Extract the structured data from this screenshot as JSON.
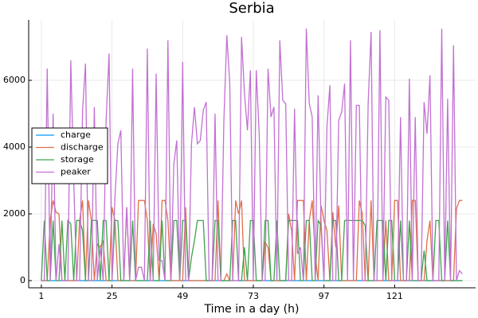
{
  "chart_data": {
    "type": "line",
    "title": "Serbia",
    "x_label": "Time in a day (h)",
    "x": [
      1,
      2,
      3,
      4,
      5,
      6,
      7,
      8,
      9,
      10,
      11,
      12,
      13,
      14,
      15,
      16,
      17,
      18,
      19,
      20,
      21,
      22,
      23,
      24,
      25,
      26,
      27,
      28,
      29,
      30,
      31,
      32,
      33,
      34,
      35,
      36,
      37,
      38,
      39,
      40,
      41,
      42,
      43,
      44,
      45,
      46,
      47,
      48,
      49,
      50,
      51,
      52,
      53,
      54,
      55,
      56,
      57,
      58,
      59,
      60,
      61,
      62,
      63,
      64,
      65,
      66,
      67,
      68,
      69,
      70,
      71,
      72,
      73,
      74,
      75,
      76,
      77,
      78,
      79,
      80,
      81,
      82,
      83,
      84,
      85,
      86,
      87,
      88,
      89,
      90,
      91,
      92,
      93,
      94,
      95,
      96,
      97,
      98,
      99,
      100,
      101,
      102,
      103,
      104,
      105,
      106,
      107,
      108,
      109,
      110,
      111,
      112,
      113,
      114,
      115,
      116,
      117,
      118,
      119,
      120,
      121,
      122,
      123,
      124,
      125,
      126,
      127,
      128,
      129,
      130,
      131,
      132,
      133,
      134,
      135,
      136,
      137,
      138,
      139,
      140,
      141,
      142,
      143,
      144
    ],
    "xlim": [
      -3.3,
      148.5
    ],
    "xticks": [
      1,
      25,
      49,
      73,
      97,
      121
    ],
    "ylim": [
      -214,
      7810
    ],
    "yticks": [
      0,
      2000,
      4000,
      6000
    ],
    "grid": true,
    "legend_position": "left",
    "series": [
      {
        "name": "charge",
        "color": "#009afa",
        "values": [
          0,
          0,
          0,
          0,
          0,
          0,
          0,
          0,
          0,
          0,
          0,
          0,
          0,
          0,
          0,
          0,
          0,
          0,
          0,
          0,
          0,
          0,
          0,
          0,
          0,
          0,
          0,
          0,
          0,
          0,
          0,
          0,
          0,
          0,
          0,
          0,
          0,
          0,
          0,
          0,
          0,
          0,
          0,
          0,
          0,
          0,
          0,
          0,
          0,
          0,
          0,
          0,
          0,
          0,
          0,
          0,
          0,
          0,
          0,
          0,
          0,
          0,
          0,
          0,
          0,
          0,
          0,
          0,
          0,
          0,
          0,
          0,
          0,
          0,
          0,
          0,
          0,
          0,
          0,
          0,
          0,
          0,
          0,
          0,
          0,
          0,
          0,
          0,
          0,
          0,
          0,
          0,
          0,
          0,
          0,
          0,
          0,
          0,
          0,
          0,
          0,
          0,
          0,
          0,
          0,
          0,
          0,
          0,
          0,
          0,
          0,
          0,
          0,
          0,
          0,
          0,
          0,
          0,
          0,
          0,
          0,
          0,
          0,
          0,
          0,
          0,
          0,
          0,
          0,
          0,
          0,
          0,
          0,
          0,
          0,
          0,
          0,
          0,
          0,
          0,
          0,
          0,
          0,
          0
        ]
      },
      {
        "name": "discharge",
        "color": "#e26f46",
        "values": [
          0,
          0,
          0,
          1800,
          2400,
          2050,
          2000,
          0,
          0,
          0,
          0,
          0,
          0,
          1800,
          2400,
          0,
          2400,
          1800,
          0,
          1100,
          1000,
          1200,
          0,
          0,
          2200,
          1800,
          0,
          0,
          0,
          2200,
          0,
          0,
          0,
          2400,
          2400,
          2400,
          1800,
          0,
          1700,
          1400,
          0,
          2400,
          2400,
          1800,
          0,
          0,
          0,
          0,
          0,
          2200,
          0,
          0,
          0,
          0,
          0,
          0,
          0,
          0,
          0,
          0,
          2400,
          0,
          0,
          200,
          0,
          0,
          2400,
          2000,
          2400,
          0,
          0,
          0,
          0,
          0,
          0,
          0,
          1150,
          1000,
          0,
          0,
          0,
          0,
          0,
          0,
          2000,
          1500,
          0,
          2400,
          2400,
          2400,
          0,
          1800,
          2400,
          800,
          0,
          2250,
          1800,
          1500,
          0,
          2050,
          1000,
          2250,
          0,
          0,
          0,
          0,
          0,
          0,
          2400,
          2000,
          0,
          0,
          2400,
          0,
          0,
          0,
          0,
          1800,
          0,
          0,
          2400,
          2400,
          0,
          0,
          0,
          0,
          2400,
          2400,
          0,
          0,
          0,
          1200,
          1800,
          0,
          0,
          0,
          0,
          0,
          0,
          0,
          0,
          2150,
          2400,
          2400
        ]
      },
      {
        "name": "storage",
        "color": "#3da44d",
        "values": [
          0,
          1800,
          0,
          0,
          1800,
          0,
          0,
          1800,
          0,
          1800,
          1700,
          0,
          1800,
          1800,
          1500,
          0,
          0,
          1800,
          1800,
          1800,
          0,
          1800,
          1800,
          0,
          0,
          1800,
          1800,
          0,
          0,
          0,
          0,
          1800,
          0,
          0,
          0,
          0,
          0,
          1800,
          0,
          0,
          0,
          1800,
          0,
          0,
          0,
          1800,
          1800,
          0,
          1800,
          1800,
          0,
          700,
          1200,
          1800,
          1800,
          1800,
          0,
          0,
          0,
          1800,
          1800,
          0,
          0,
          0,
          0,
          1800,
          1800,
          0,
          0,
          1000,
          0,
          1800,
          1800,
          0,
          0,
          0,
          1800,
          1800,
          0,
          0,
          1800,
          0,
          0,
          0,
          1800,
          1800,
          1800,
          1800,
          0,
          0,
          1800,
          1800,
          0,
          0,
          1800,
          1650,
          0,
          0,
          0,
          1800,
          1800,
          0,
          0,
          1800,
          1800,
          1800,
          1800,
          1800,
          1800,
          1800,
          1650,
          0,
          0,
          0,
          1800,
          1800,
          1800,
          0,
          1800,
          1800,
          0,
          0,
          1800,
          0,
          0,
          1800,
          0,
          0,
          0,
          0,
          900,
          0,
          0,
          0,
          1800,
          1800,
          0,
          0,
          1800,
          0,
          0,
          0,
          0,
          0
        ]
      },
      {
        "name": "peaker",
        "color": "#c271d2",
        "values": [
          0,
          0,
          6350,
          0,
          5000,
          0,
          1100,
          0,
          0,
          0,
          6600,
          3000,
          0,
          0,
          5100,
          6500,
          0,
          0,
          5200,
          0,
          1000,
          0,
          4800,
          6800,
          0,
          2500,
          4100,
          4500,
          0,
          2200,
          0,
          6350,
          0,
          400,
          400,
          0,
          6950,
          0,
          0,
          6200,
          600,
          600,
          0,
          7200,
          0,
          3500,
          4200,
          0,
          6550,
          0,
          0,
          4100,
          5200,
          4100,
          4200,
          5100,
          5350,
          0,
          0,
          5000,
          0,
          0,
          4800,
          7350,
          5900,
          0,
          0,
          0,
          7300,
          5600,
          4500,
          6300,
          0,
          6300,
          4400,
          0,
          0,
          6350,
          4900,
          5200,
          0,
          7200,
          5400,
          5300,
          0,
          0,
          5150,
          800,
          1000,
          0,
          7550,
          5300,
          4900,
          0,
          5550,
          1800,
          0,
          4600,
          5850,
          0,
          0,
          4800,
          5050,
          5900,
          0,
          7200,
          0,
          5250,
          5250,
          0,
          0,
          5300,
          7450,
          0,
          0,
          7500,
          0,
          5500,
          5400,
          0,
          0,
          0,
          4900,
          0,
          0,
          6050,
          0,
          4900,
          0,
          0,
          5350,
          4400,
          6150,
          0,
          0,
          0,
          7550,
          0,
          5450,
          0,
          7050,
          0,
          300,
          200
        ]
      }
    ]
  }
}
